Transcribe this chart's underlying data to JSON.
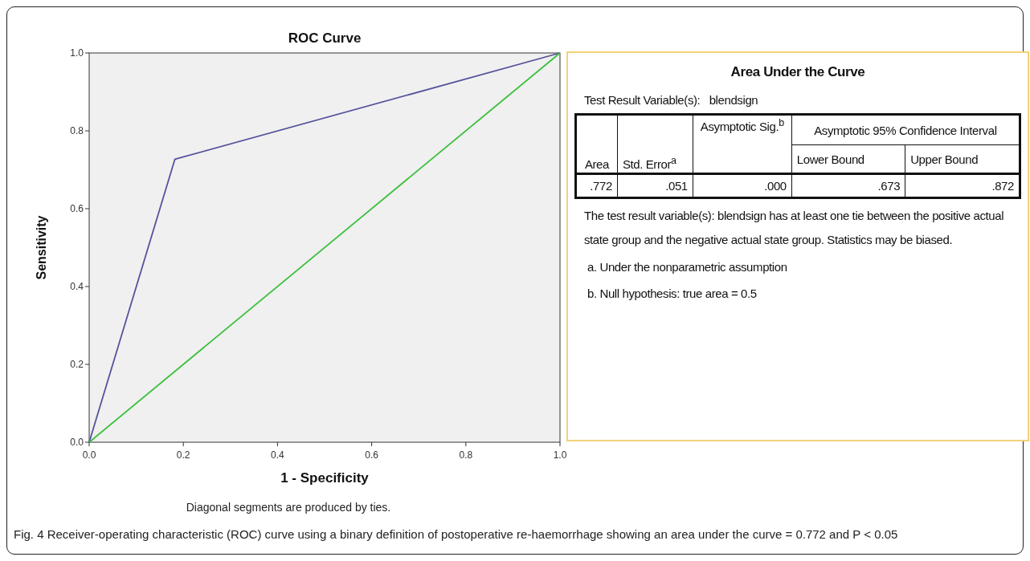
{
  "chart_data": [
    {
      "type": "line",
      "title": "ROC Curve",
      "xlabel": "1 - Specificity",
      "ylabel": "Sensitivity",
      "xlim": [
        0,
        1
      ],
      "ylim": [
        0,
        1
      ],
      "xticks": [
        {
          "value": 0,
          "label": "0.0"
        },
        {
          "value": 0.2,
          "label": "0.2"
        },
        {
          "value": 0.4,
          "label": "0.4"
        },
        {
          "value": 0.6,
          "label": "0.6"
        },
        {
          "value": 0.8,
          "label": "0.8"
        },
        {
          "value": 1,
          "label": "1.0"
        }
      ],
      "yticks": [
        {
          "value": 0,
          "label": "0.0"
        },
        {
          "value": 0.2,
          "label": "0.2"
        },
        {
          "value": 0.4,
          "label": "0.4"
        },
        {
          "value": 0.6,
          "label": "0.6"
        },
        {
          "value": 0.8,
          "label": "0.8"
        },
        {
          "value": 1,
          "label": "1.0"
        }
      ],
      "series": [
        {
          "color": "#55539c",
          "x": [
            0,
            0.182,
            1
          ],
          "values": [
            0,
            0.727,
            1
          ]
        },
        {
          "color": "#3cbf3c",
          "x": [
            0,
            1
          ],
          "values": [
            0,
            1
          ]
        }
      ],
      "annotations": [
        "Diagonal segments are produced by ties.",
        "Fig. 4 Receiver-operating characteristic (ROC) curve using a binary definition of postoperative re-haemorrhage showing an area under the curve = 0.772 and P < 0.05"
      ]
    },
    {
      "type": "other",
      "title": "Area Under the Curve",
      "annotations": [
        "Test Result Variable(s):",
        "blendsign",
        "Area",
        "Std. Error$^{a}$",
        "Asymptotic Sig.$^{b}$",
        "Asymptotic 95% Confidence Interval",
        "Lower Bound",
        "Upper Bound",
        ".772",
        ".051",
        ".000",
        ".673",
        ".872",
        "The test result variable(s): blendsign has at least one tie between the positive actual state group and the negative actual state group. Statistics may be biased.",
        "a. Under the nonparametric assumption",
        "b. Null hypothesis: true area = 0.5"
      ]
    }
  ]
}
